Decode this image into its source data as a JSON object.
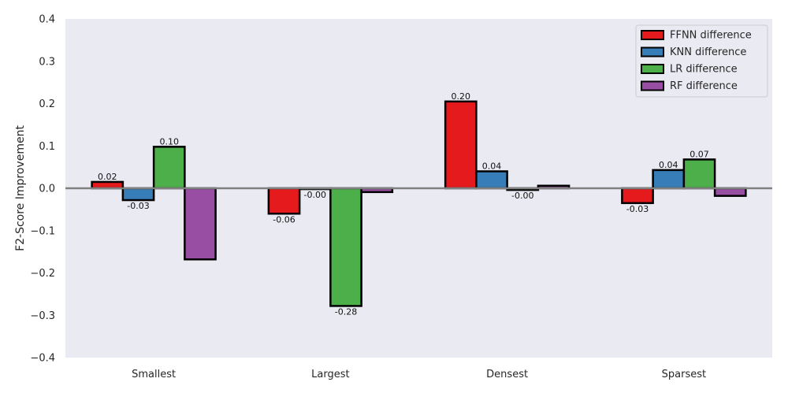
{
  "chart_data": {
    "type": "bar",
    "title": "",
    "xlabel": "",
    "ylabel": "F2-Score Improvement",
    "ylim": [
      -0.4,
      0.4
    ],
    "yticks": [
      0.4,
      0.3,
      0.2,
      0.1,
      0.0,
      -0.1,
      -0.2,
      -0.3,
      -0.4
    ],
    "ytick_labels": [
      "0.4",
      "0.3",
      "0.2",
      "0.1",
      "0.0",
      "−0.1",
      "−0.2",
      "−0.3",
      "−0.4"
    ],
    "categories": [
      "Smallest",
      "Largest",
      "Densest",
      "Sparsest"
    ],
    "grid": false,
    "legend_position": "top-right",
    "background_color": "#eaeaf2",
    "zero_line_color": "#808080",
    "series": [
      {
        "name": "FFNN difference",
        "color": "#e41a1c",
        "values": [
          0.015,
          -0.06,
          0.205,
          -0.035
        ],
        "labels": [
          "0.02",
          "-0.06",
          "0.20",
          "-0.03"
        ]
      },
      {
        "name": "KNN difference",
        "color": "#377eb8",
        "values": [
          -0.028,
          -0.002,
          0.04,
          0.043
        ],
        "labels": [
          "-0.03",
          "-0.00",
          "0.04",
          "0.04"
        ]
      },
      {
        "name": "LR difference",
        "color": "#4daf4a",
        "values": [
          0.098,
          -0.278,
          -0.004,
          0.068
        ],
        "labels": [
          "0.10",
          "-0.28",
          "-0.00",
          "0.07"
        ]
      },
      {
        "name": "RF difference",
        "color": "#984ea3",
        "values": [
          -0.168,
          -0.009,
          0.006,
          -0.018
        ],
        "labels": [
          "",
          "",
          "",
          ""
        ]
      }
    ]
  }
}
